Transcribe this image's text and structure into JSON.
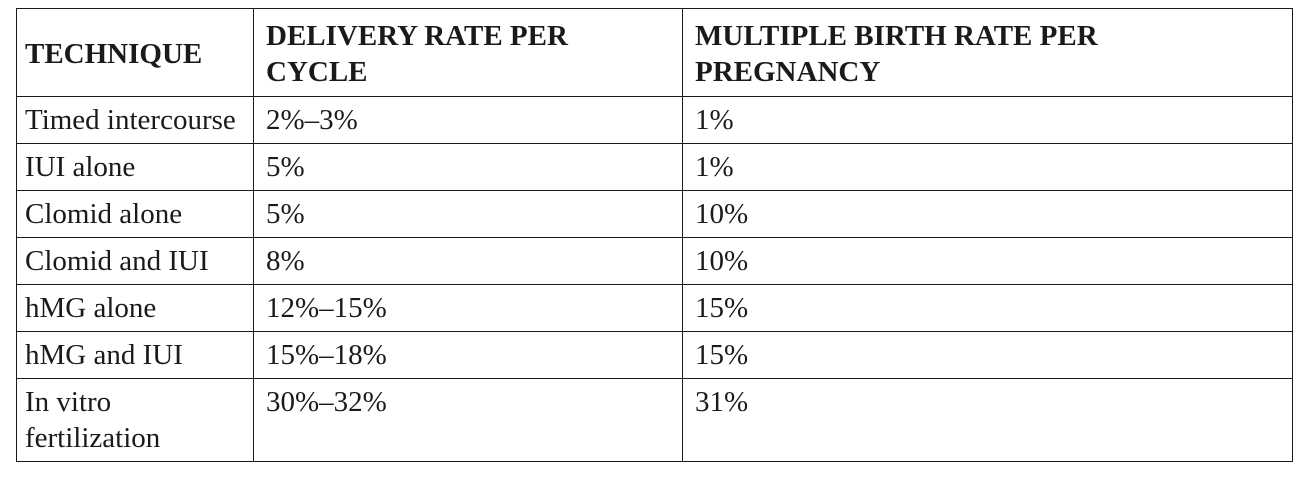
{
  "table": {
    "headers": [
      "TECHNIQUE",
      "DELIVERY RATE PER CYCLE",
      "MULTIPLE BIRTH RATE PER PREGNANCY"
    ],
    "rows": [
      [
        "Timed intercourse",
        "2%–3%",
        "1%"
      ],
      [
        "IUI alone",
        "5%",
        "1%"
      ],
      [
        "Clomid alone",
        "5%",
        "10%"
      ],
      [
        "Clomid and IUI",
        "8%",
        "10%"
      ],
      [
        "hMG alone",
        "12%–15%",
        "15%"
      ],
      [
        "hMG and IUI",
        "15%–18%",
        "15%"
      ],
      [
        "In vitro fertilization",
        "30%–32%",
        "31%"
      ]
    ]
  }
}
